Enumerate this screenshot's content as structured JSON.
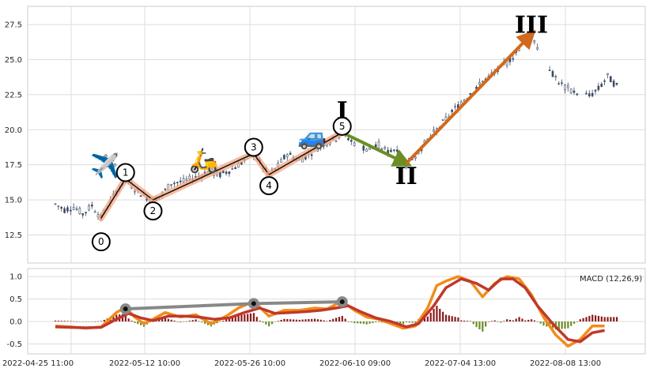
{
  "chart_data": [
    {
      "type": "candlestick",
      "title": "",
      "ylim": [
        10.5,
        28.8
      ],
      "yticks": [
        "12.5",
        "15.0",
        "17.5",
        "20.0",
        "22.5",
        "25.0",
        "27.5"
      ],
      "grid": true,
      "price_path": [
        [
          0,
          14.7
        ],
        [
          6,
          14.3
        ],
        [
          12,
          14.5
        ],
        [
          18,
          14.0
        ],
        [
          24,
          14.6
        ],
        [
          30,
          13.7
        ],
        [
          34,
          14.5
        ],
        [
          40,
          15.6
        ],
        [
          46,
          16.5
        ],
        [
          52,
          15.8
        ],
        [
          58,
          15.3
        ],
        [
          64,
          15.0
        ],
        [
          70,
          15.4
        ],
        [
          76,
          16.2
        ],
        [
          84,
          16.3
        ],
        [
          92,
          16.6
        ],
        [
          100,
          17.0
        ],
        [
          108,
          16.8
        ],
        [
          116,
          17.2
        ],
        [
          124,
          17.8
        ],
        [
          130,
          18.3
        ],
        [
          136,
          17.3
        ],
        [
          140,
          16.8
        ],
        [
          146,
          17.4
        ],
        [
          152,
          18.3
        ],
        [
          160,
          17.8
        ],
        [
          168,
          18.4
        ],
        [
          176,
          19.0
        ],
        [
          184,
          19.4
        ],
        [
          188,
          19.8
        ],
        [
          194,
          19.2
        ],
        [
          200,
          18.8
        ],
        [
          206,
          18.6
        ],
        [
          212,
          18.9
        ],
        [
          218,
          18.4
        ],
        [
          224,
          18.7
        ],
        [
          230,
          17.6
        ],
        [
          236,
          18.2
        ],
        [
          242,
          19.0
        ],
        [
          250,
          20.0
        ],
        [
          258,
          21.0
        ],
        [
          266,
          22.0
        ],
        [
          274,
          22.8
        ],
        [
          282,
          23.6
        ],
        [
          290,
          24.2
        ],
        [
          296,
          24.8
        ],
        [
          302,
          25.5
        ],
        [
          308,
          26.5
        ],
        [
          312,
          26.8
        ],
        [
          316,
          26.0
        ],
        [
          320,
          25.2
        ],
        [
          326,
          24.0
        ],
        [
          332,
          23.2
        ],
        [
          338,
          22.8
        ],
        [
          344,
          22.6
        ],
        [
          350,
          22.4
        ],
        [
          356,
          22.9
        ],
        [
          362,
          23.8
        ],
        [
          368,
          23.1
        ]
      ],
      "waves": [
        {
          "label": "0",
          "x": 30,
          "y": 13.7
        },
        {
          "label": "1",
          "x": 46,
          "y": 16.5
        },
        {
          "label": "2",
          "x": 64,
          "y": 15.0
        },
        {
          "label": "3",
          "x": 130,
          "y": 18.3
        },
        {
          "label": "4",
          "x": 140,
          "y": 16.8
        },
        {
          "label": "5",
          "x": 188,
          "y": 19.8
        }
      ],
      "corrective": [
        {
          "label": "I",
          "x": 188,
          "y": 19.8
        },
        {
          "label": "II",
          "x": 230,
          "y": 17.6
        },
        {
          "label": "III",
          "x": 312,
          "y": 26.8
        }
      ],
      "emoji": [
        "✈️",
        "🛵",
        "🚙"
      ]
    },
    {
      "type": "macd",
      "legend": "MACD (12,26,9)",
      "ylim": [
        -0.72,
        1.18
      ],
      "yticks": [
        "-0.5",
        "0.0",
        "0.5",
        "1.0"
      ],
      "xtick_labels": [
        "2022-04-25 11:00",
        "2022-05-12 10:00",
        "2022-05-26 10:00",
        "2022-06-10 09:00",
        "2022-07-04 13:00",
        "2022-08-08 13:00"
      ],
      "macd": [
        [
          0,
          -0.1
        ],
        [
          10,
          -0.12
        ],
        [
          20,
          -0.15
        ],
        [
          30,
          -0.12
        ],
        [
          40,
          0.2
        ],
        [
          46,
          0.32
        ],
        [
          52,
          0.1
        ],
        [
          58,
          -0.05
        ],
        [
          64,
          0.05
        ],
        [
          72,
          0.2
        ],
        [
          82,
          0.1
        ],
        [
          92,
          0.15
        ],
        [
          102,
          -0.05
        ],
        [
          112,
          0.12
        ],
        [
          120,
          0.3
        ],
        [
          130,
          0.45
        ],
        [
          140,
          0.12
        ],
        [
          150,
          0.25
        ],
        [
          160,
          0.25
        ],
        [
          170,
          0.3
        ],
        [
          178,
          0.28
        ],
        [
          188,
          0.45
        ],
        [
          196,
          0.25
        ],
        [
          204,
          0.1
        ],
        [
          212,
          0.05
        ],
        [
          220,
          -0.05
        ],
        [
          228,
          -0.15
        ],
        [
          236,
          -0.1
        ],
        [
          244,
          0.3
        ],
        [
          250,
          0.8
        ],
        [
          256,
          0.9
        ],
        [
          264,
          1.0
        ],
        [
          272,
          0.9
        ],
        [
          280,
          0.55
        ],
        [
          288,
          0.85
        ],
        [
          296,
          1.0
        ],
        [
          304,
          0.95
        ],
        [
          312,
          0.6
        ],
        [
          320,
          0.1
        ],
        [
          328,
          -0.3
        ],
        [
          336,
          -0.55
        ],
        [
          344,
          -0.4
        ],
        [
          352,
          -0.1
        ],
        [
          360,
          -0.1
        ]
      ],
      "signal": [
        [
          0,
          -0.12
        ],
        [
          10,
          -0.13
        ],
        [
          20,
          -0.14
        ],
        [
          30,
          -0.13
        ],
        [
          40,
          0.05
        ],
        [
          48,
          0.18
        ],
        [
          56,
          0.08
        ],
        [
          64,
          0.02
        ],
        [
          74,
          0.12
        ],
        [
          84,
          0.12
        ],
        [
          94,
          0.1
        ],
        [
          104,
          0.05
        ],
        [
          114,
          0.08
        ],
        [
          124,
          0.2
        ],
        [
          134,
          0.3
        ],
        [
          144,
          0.18
        ],
        [
          154,
          0.2
        ],
        [
          164,
          0.22
        ],
        [
          174,
          0.25
        ],
        [
          184,
          0.3
        ],
        [
          192,
          0.35
        ],
        [
          200,
          0.22
        ],
        [
          210,
          0.08
        ],
        [
          220,
          0.0
        ],
        [
          230,
          -0.12
        ],
        [
          238,
          -0.05
        ],
        [
          248,
          0.35
        ],
        [
          256,
          0.75
        ],
        [
          266,
          0.95
        ],
        [
          276,
          0.85
        ],
        [
          284,
          0.7
        ],
        [
          292,
          0.95
        ],
        [
          300,
          0.95
        ],
        [
          308,
          0.75
        ],
        [
          316,
          0.35
        ],
        [
          326,
          -0.05
        ],
        [
          336,
          -0.4
        ],
        [
          344,
          -0.45
        ],
        [
          352,
          -0.25
        ],
        [
          360,
          -0.2
        ]
      ],
      "divergence_points": [
        [
          46,
          0.28
        ],
        [
          130,
          0.4
        ],
        [
          188,
          0.44
        ]
      ]
    }
  ]
}
